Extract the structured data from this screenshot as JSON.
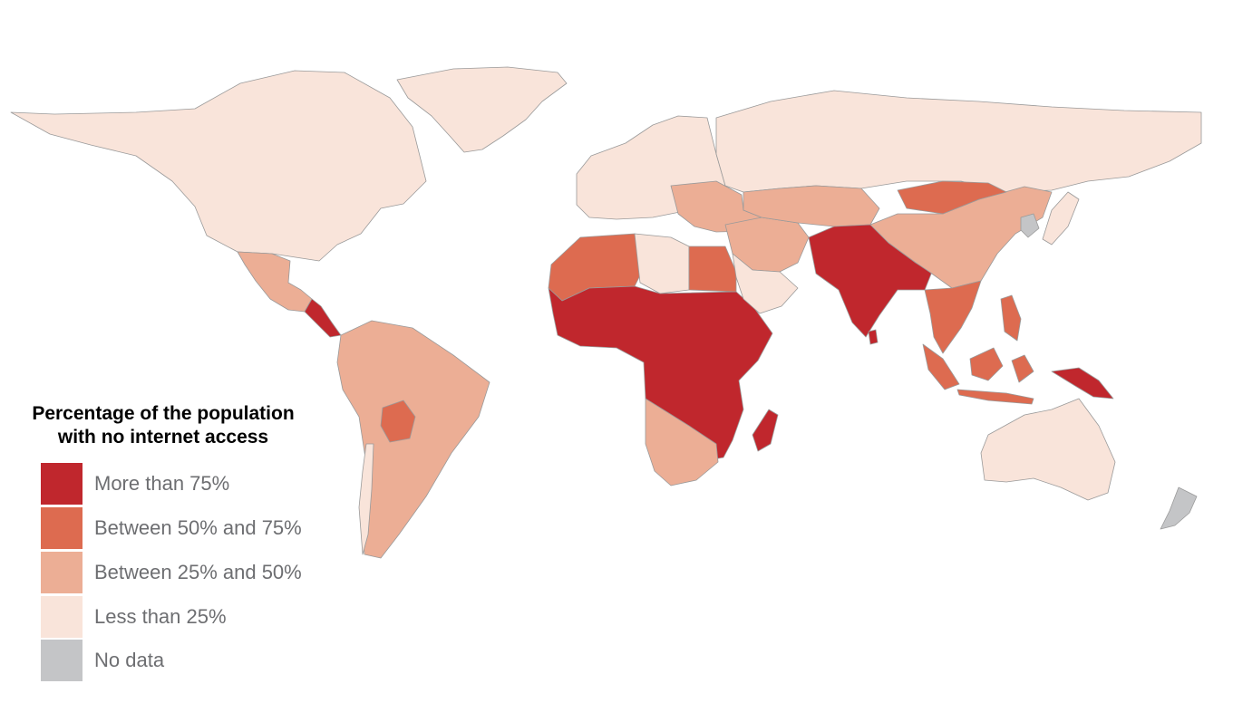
{
  "legend": {
    "title_line1": "Percentage of the population",
    "title_line2": "with no internet access",
    "items": [
      {
        "key": "gt75",
        "label": "More than 75%",
        "color": "#c0272d"
      },
      {
        "key": "50to75",
        "label": "Between 50% and 75%",
        "color": "#dd6b50"
      },
      {
        "key": "25to50",
        "label": "Between 25% and 50%",
        "color": "#ecae95"
      },
      {
        "key": "lt25",
        "label": "Less than 25%",
        "color": "#f9e4da"
      },
      {
        "key": "nodata",
        "label": "No data",
        "color": "#c4c5c7"
      }
    ]
  },
  "regions": [
    {
      "name": "north-america",
      "class": "lt25"
    },
    {
      "name": "greenland",
      "class": "lt25"
    },
    {
      "name": "mexico",
      "class": "25to50"
    },
    {
      "name": "central-america",
      "class": "gt75"
    },
    {
      "name": "south-america",
      "class": "25to50"
    },
    {
      "name": "bolivia",
      "class": "50to75"
    },
    {
      "name": "chile",
      "class": "lt25"
    },
    {
      "name": "europe",
      "class": "lt25"
    },
    {
      "name": "balkans",
      "class": "25to50"
    },
    {
      "name": "russia",
      "class": "lt25"
    },
    {
      "name": "north-africa-west",
      "class": "50to75"
    },
    {
      "name": "libya",
      "class": "lt25"
    },
    {
      "name": "egypt",
      "class": "50to75"
    },
    {
      "name": "sub-saharan-africa",
      "class": "gt75"
    },
    {
      "name": "southern-africa",
      "class": "25to50"
    },
    {
      "name": "madagascar",
      "class": "gt75"
    },
    {
      "name": "middle-east",
      "class": "25to50"
    },
    {
      "name": "arabia",
      "class": "lt25"
    },
    {
      "name": "central-asia",
      "class": "25to50"
    },
    {
      "name": "south-asia",
      "class": "gt75"
    },
    {
      "name": "china",
      "class": "25to50"
    },
    {
      "name": "mongolia",
      "class": "50to75"
    },
    {
      "name": "korea",
      "class": "nodata"
    },
    {
      "name": "japan",
      "class": "lt25"
    },
    {
      "name": "southeast-asia",
      "class": "50to75"
    },
    {
      "name": "indonesia",
      "class": "50to75"
    },
    {
      "name": "papua-new-guinea",
      "class": "gt75"
    },
    {
      "name": "australia",
      "class": "lt25"
    },
    {
      "name": "new-zealand",
      "class": "nodata"
    }
  ]
}
